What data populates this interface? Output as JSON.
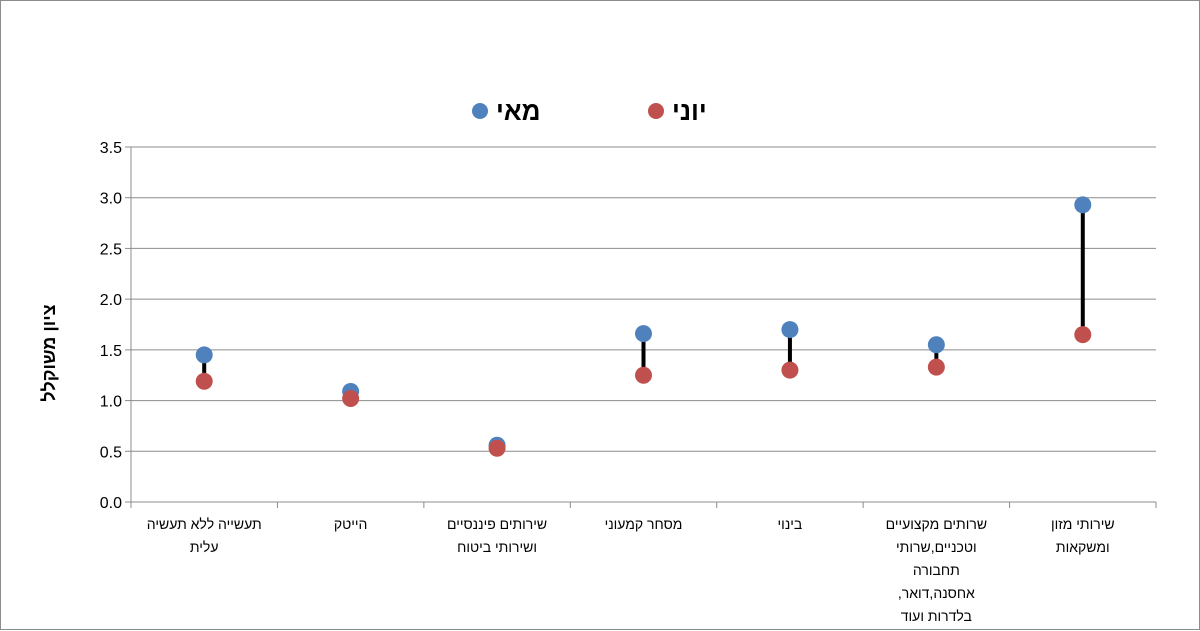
{
  "chart_data": {
    "type": "scatter",
    "title": "",
    "xlabel": "",
    "ylabel": "ציון משוקלל",
    "ylim": [
      0,
      3.5
    ],
    "yticks": [
      "0.0",
      "0.5",
      "1.0",
      "1.5",
      "2.0",
      "2.5",
      "3.0",
      "3.5"
    ],
    "grid": true,
    "legend_position": "top",
    "categories": [
      [
        "תעשייה ללא תעשיה",
        "עלית"
      ],
      [
        "הייטק"
      ],
      [
        "שירותים פיננסיים",
        "ושירותי ביטוח"
      ],
      [
        "מסחר קמעוני"
      ],
      [
        "בינוי"
      ],
      [
        "שרותים מקצועיים",
        "וטכניים,שרותי",
        "תחבורה",
        "אחסנה,דואר,",
        "בלדרות ועוד"
      ],
      [
        "שירותי מזון",
        "ומשקאות"
      ]
    ],
    "series": [
      {
        "name": "מאי",
        "color": "#4f81bd",
        "values": [
          1.45,
          1.09,
          0.56,
          1.66,
          1.7,
          1.55,
          2.93
        ]
      },
      {
        "name": "יוני",
        "color": "#c0504d",
        "values": [
          1.19,
          1.02,
          0.53,
          1.25,
          1.3,
          1.33,
          1.65
        ]
      }
    ],
    "connector_color": "#000000"
  }
}
